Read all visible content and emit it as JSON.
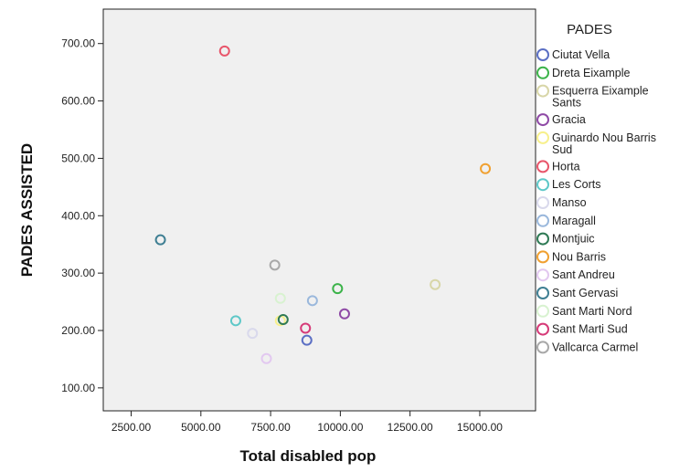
{
  "chart_data": {
    "type": "scatter",
    "xlabel": "Total disabled pop",
    "ylabel": "PADES ASSISTED",
    "xlim": [
      1500,
      17000
    ],
    "ylim": [
      60,
      760
    ],
    "xticks": [
      "2500.00",
      "5000.00",
      "7500.00",
      "10000.00",
      "12500.00",
      "15000.00"
    ],
    "xtick_values": [
      2500,
      5000,
      7500,
      10000,
      12500,
      15000
    ],
    "yticks": [
      "100.00",
      "200.00",
      "300.00",
      "400.00",
      "500.00",
      "600.00",
      "700.00"
    ],
    "ytick_values": [
      100,
      200,
      300,
      400,
      500,
      600,
      700
    ],
    "grid": false,
    "legend_title": "PADES",
    "legend_position": "right",
    "series": [
      {
        "name": "Ciutat Vella",
        "color": "#5b6fc4",
        "points": [
          [
            8800,
            183
          ]
        ]
      },
      {
        "name": "Dreta Eixample",
        "color": "#3cb34a",
        "points": [
          [
            9900,
            273
          ]
        ]
      },
      {
        "name": "Esquerra Eixample Sants",
        "color": "#d8d6a8",
        "points": [
          [
            13400,
            280
          ]
        ]
      },
      {
        "name": "Gracia",
        "color": "#8f4aa6",
        "points": [
          [
            10150,
            229
          ]
        ]
      },
      {
        "name": "Guinardo Nou Barris Sud",
        "color": "#f7f08c",
        "points": [
          [
            7850,
            217
          ]
        ]
      },
      {
        "name": "Horta",
        "color": "#e8556a",
        "points": [
          [
            5850,
            687
          ]
        ]
      },
      {
        "name": "Les Corts",
        "color": "#5ec8c8",
        "points": [
          [
            6250,
            217
          ]
        ]
      },
      {
        "name": "Manso",
        "color": "#d9d9ec",
        "points": [
          [
            6850,
            195
          ]
        ]
      },
      {
        "name": "Maragall",
        "color": "#9ab8dc",
        "points": [
          [
            9000,
            252
          ]
        ]
      },
      {
        "name": "Montjuic",
        "color": "#2f7a55",
        "points": [
          [
            7950,
            219
          ]
        ]
      },
      {
        "name": "Nou Barris",
        "color": "#f0a030",
        "points": [
          [
            15200,
            482
          ]
        ]
      },
      {
        "name": "Sant Andreu",
        "color": "#e2c8f0",
        "points": [
          [
            7350,
            151
          ]
        ]
      },
      {
        "name": "Sant Gervasi",
        "color": "#3f7f93",
        "points": [
          [
            3550,
            358
          ]
        ]
      },
      {
        "name": "Sant Marti Nord",
        "color": "#d8f2d0",
        "points": [
          [
            7850,
            256
          ]
        ]
      },
      {
        "name": "Sant Marti Sud",
        "color": "#d63a78",
        "points": [
          [
            8750,
            204
          ]
        ]
      },
      {
        "name": "Vallcarca Carmel",
        "color": "#a8a8a8",
        "points": [
          [
            7650,
            314
          ]
        ]
      }
    ]
  }
}
